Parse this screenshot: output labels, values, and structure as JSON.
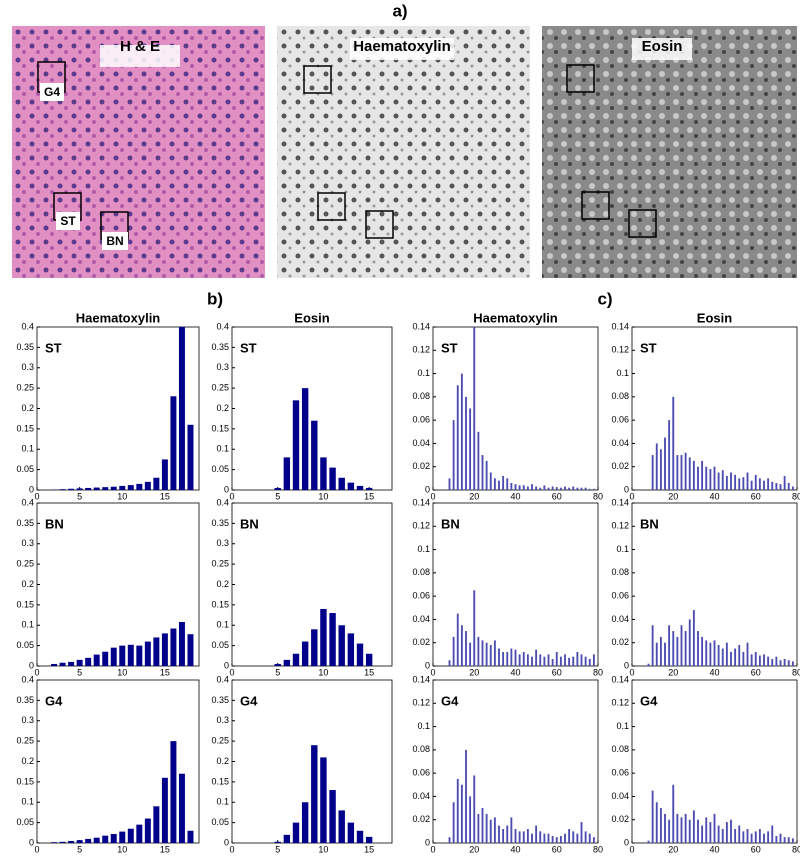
{
  "figure": {
    "label_a": "a)",
    "label_b": "b)",
    "label_c": "c)",
    "images": [
      {
        "title": "H & E",
        "boxes": [
          "G4",
          "ST",
          "BN"
        ]
      },
      {
        "title": "Haematoxylin"
      },
      {
        "title": "Eosin"
      }
    ]
  },
  "chart_data": [
    {
      "type": "bar",
      "title": "Haematoxylin",
      "annotation": "ST",
      "color": "#00008b",
      "x": [
        2,
        3,
        4,
        5,
        6,
        7,
        8,
        9,
        10,
        11,
        12,
        13,
        14,
        15,
        16,
        17,
        18
      ],
      "values": [
        0.001,
        0.002,
        0.003,
        0.004,
        0.005,
        0.006,
        0.007,
        0.008,
        0.01,
        0.012,
        0.015,
        0.02,
        0.03,
        0.075,
        0.23,
        0.4,
        0.16
      ],
      "xlim": [
        0,
        19
      ],
      "xticks": [
        0,
        5,
        10,
        15
      ],
      "ylim": [
        0,
        0.4
      ],
      "yticks": [
        0,
        0.05,
        0.1,
        0.15,
        0.2,
        0.25,
        0.3,
        0.35,
        0.4
      ]
    },
    {
      "type": "bar",
      "title": "Eosin",
      "annotation": "ST",
      "color": "#00008b",
      "x": [
        5,
        6,
        7,
        8,
        9,
        10,
        11,
        12,
        13,
        14,
        15
      ],
      "values": [
        0.005,
        0.08,
        0.22,
        0.25,
        0.17,
        0.08,
        0.055,
        0.03,
        0.018,
        0.01,
        0.005
      ],
      "xlim": [
        0,
        17.5
      ],
      "xticks": [
        0,
        5,
        10,
        15
      ],
      "ylim": [
        0,
        0.4
      ],
      "yticks": [
        0,
        0.05,
        0.1,
        0.15,
        0.2,
        0.25,
        0.3,
        0.35,
        0.4
      ]
    },
    {
      "type": "bar",
      "title": "Haematoxylin",
      "annotation": "ST",
      "color": "#4b4bb0",
      "x": [
        8,
        10,
        12,
        14,
        16,
        18,
        20,
        22,
        24,
        26,
        28,
        30,
        32,
        34,
        36,
        38,
        40,
        42,
        44,
        46,
        48,
        50,
        52,
        54,
        56,
        58,
        60,
        62,
        64,
        66,
        68,
        70,
        72,
        74,
        76,
        78
      ],
      "values": [
        0.01,
        0.06,
        0.09,
        0.1,
        0.08,
        0.07,
        0.14,
        0.05,
        0.03,
        0.025,
        0.015,
        0.01,
        0.008,
        0.012,
        0.01,
        0.006,
        0.005,
        0.004,
        0.004,
        0.003,
        0.005,
        0.003,
        0.002,
        0.004,
        0.002,
        0.003,
        0.002,
        0.002,
        0.003,
        0.002,
        0.003,
        0.002,
        0.002,
        0.002,
        0.001,
        0.001
      ],
      "xlim": [
        0,
        80
      ],
      "xticks": [
        0,
        20,
        40,
        60,
        80
      ],
      "ylim": [
        0,
        0.14
      ],
      "yticks": [
        0,
        0.02,
        0.04,
        0.06,
        0.08,
        0.1,
        0.12,
        0.14
      ]
    },
    {
      "type": "bar",
      "title": "Eosin",
      "annotation": "ST",
      "color": "#4b4bb0",
      "x": [
        8,
        10,
        12,
        14,
        16,
        18,
        20,
        22,
        24,
        26,
        28,
        30,
        32,
        34,
        36,
        38,
        40,
        42,
        44,
        46,
        48,
        50,
        52,
        54,
        56,
        58,
        60,
        62,
        64,
        66,
        68,
        70,
        72,
        74,
        76,
        78
      ],
      "values": [
        0,
        0.03,
        0.04,
        0.035,
        0.045,
        0.06,
        0.08,
        0.03,
        0.03,
        0.032,
        0.028,
        0.025,
        0.02,
        0.025,
        0.02,
        0.018,
        0.02,
        0.015,
        0.017,
        0.012,
        0.015,
        0.013,
        0.01,
        0.011,
        0.015,
        0.008,
        0.013,
        0.01,
        0.008,
        0.01,
        0.007,
        0.006,
        0.005,
        0.012,
        0.006,
        0.003
      ],
      "xlim": [
        0,
        80
      ],
      "xticks": [
        0,
        20,
        40,
        60,
        80
      ],
      "ylim": [
        0,
        0.14
      ],
      "yticks": [
        0,
        0.02,
        0.04,
        0.06,
        0.08,
        0.1,
        0.12,
        0.14
      ]
    },
    {
      "type": "bar",
      "annotation": "BN",
      "color": "#00008b",
      "x": [
        2,
        3,
        4,
        5,
        6,
        7,
        8,
        9,
        10,
        11,
        12,
        13,
        14,
        15,
        16,
        17,
        18
      ],
      "values": [
        0.005,
        0.008,
        0.01,
        0.015,
        0.02,
        0.028,
        0.035,
        0.045,
        0.05,
        0.052,
        0.05,
        0.06,
        0.07,
        0.08,
        0.092,
        0.108,
        0.078
      ],
      "xlim": [
        0,
        19
      ],
      "xticks": [
        0,
        5,
        10,
        15
      ],
      "ylim": [
        0,
        0.4
      ],
      "yticks": [
        0,
        0.05,
        0.1,
        0.15,
        0.2,
        0.25,
        0.3,
        0.35,
        0.4
      ]
    },
    {
      "type": "bar",
      "annotation": "BN",
      "color": "#00008b",
      "x": [
        5,
        6,
        7,
        8,
        9,
        10,
        11,
        12,
        13,
        14,
        15
      ],
      "values": [
        0.005,
        0.015,
        0.03,
        0.06,
        0.09,
        0.14,
        0.13,
        0.1,
        0.08,
        0.055,
        0.03
      ],
      "xlim": [
        0,
        17.5
      ],
      "xticks": [
        0,
        5,
        10,
        15
      ],
      "ylim": [
        0,
        0.4
      ],
      "yticks": [
        0,
        0.05,
        0.1,
        0.15,
        0.2,
        0.25,
        0.3,
        0.35,
        0.4
      ]
    },
    {
      "type": "bar",
      "annotation": "BN",
      "color": "#4b4bb0",
      "x": [
        8,
        10,
        12,
        14,
        16,
        18,
        20,
        22,
        24,
        26,
        28,
        30,
        32,
        34,
        36,
        38,
        40,
        42,
        44,
        46,
        48,
        50,
        52,
        54,
        56,
        58,
        60,
        62,
        64,
        66,
        68,
        70,
        72,
        74,
        76,
        78
      ],
      "values": [
        0.005,
        0.025,
        0.045,
        0.035,
        0.03,
        0.02,
        0.065,
        0.025,
        0.022,
        0.02,
        0.018,
        0.022,
        0.015,
        0.012,
        0.012,
        0.015,
        0.014,
        0.01,
        0.012,
        0.01,
        0.008,
        0.014,
        0.01,
        0.008,
        0.01,
        0.006,
        0.012,
        0.008,
        0.01,
        0.007,
        0.008,
        0.012,
        0.01,
        0.008,
        0.006,
        0.01
      ],
      "xlim": [
        0,
        80
      ],
      "xticks": [
        0,
        20,
        40,
        60,
        80
      ],
      "ylim": [
        0,
        0.14
      ],
      "yticks": [
        0,
        0.02,
        0.04,
        0.06,
        0.08,
        0.1,
        0.12,
        0.14
      ]
    },
    {
      "type": "bar",
      "annotation": "BN",
      "color": "#4b4bb0",
      "x": [
        8,
        10,
        12,
        14,
        16,
        18,
        20,
        22,
        24,
        26,
        28,
        30,
        32,
        34,
        36,
        38,
        40,
        42,
        44,
        46,
        48,
        50,
        52,
        54,
        56,
        58,
        60,
        62,
        64,
        66,
        68,
        70,
        72,
        74,
        76,
        78
      ],
      "values": [
        0.002,
        0.035,
        0.02,
        0.025,
        0.02,
        0.035,
        0.03,
        0.025,
        0.035,
        0.03,
        0.04,
        0.048,
        0.03,
        0.025,
        0.022,
        0.02,
        0.022,
        0.018,
        0.015,
        0.02,
        0.012,
        0.015,
        0.018,
        0.012,
        0.02,
        0.01,
        0.012,
        0.009,
        0.01,
        0.008,
        0.006,
        0.008,
        0.005,
        0.006,
        0.005,
        0.004
      ],
      "xlim": [
        0,
        80
      ],
      "xticks": [
        0,
        20,
        40,
        60,
        80
      ],
      "ylim": [
        0,
        0.14
      ],
      "yticks": [
        0,
        0.02,
        0.04,
        0.06,
        0.08,
        0.1,
        0.12,
        0.14
      ]
    },
    {
      "type": "bar",
      "annotation": "G4",
      "color": "#00008b",
      "x": [
        2,
        3,
        4,
        5,
        6,
        7,
        8,
        9,
        10,
        11,
        12,
        13,
        14,
        15,
        16,
        17,
        18
      ],
      "values": [
        0.002,
        0.003,
        0.005,
        0.007,
        0.01,
        0.013,
        0.018,
        0.022,
        0.028,
        0.035,
        0.045,
        0.06,
        0.09,
        0.16,
        0.25,
        0.17,
        0.03
      ],
      "xlim": [
        0,
        19
      ],
      "xticks": [
        0,
        5,
        10,
        15
      ],
      "ylim": [
        0,
        0.4
      ],
      "yticks": [
        0,
        0.05,
        0.1,
        0.15,
        0.2,
        0.25,
        0.3,
        0.35,
        0.4
      ]
    },
    {
      "type": "bar",
      "annotation": "G4",
      "color": "#00008b",
      "x": [
        5,
        6,
        7,
        8,
        9,
        10,
        11,
        12,
        13,
        14,
        15
      ],
      "values": [
        0.003,
        0.02,
        0.05,
        0.1,
        0.24,
        0.21,
        0.13,
        0.08,
        0.05,
        0.03,
        0.015
      ],
      "xlim": [
        0,
        17.5
      ],
      "xticks": [
        0,
        5,
        10,
        15
      ],
      "ylim": [
        0,
        0.4
      ],
      "yticks": [
        0,
        0.05,
        0.1,
        0.15,
        0.2,
        0.25,
        0.3,
        0.35,
        0.4
      ]
    },
    {
      "type": "bar",
      "annotation": "G4",
      "color": "#4b4bb0",
      "x": [
        8,
        10,
        12,
        14,
        16,
        18,
        20,
        22,
        24,
        26,
        28,
        30,
        32,
        34,
        36,
        38,
        40,
        42,
        44,
        46,
        48,
        50,
        52,
        54,
        56,
        58,
        60,
        62,
        64,
        66,
        68,
        70,
        72,
        74,
        76,
        78
      ],
      "values": [
        0.005,
        0.035,
        0.055,
        0.05,
        0.08,
        0.04,
        0.058,
        0.025,
        0.03,
        0.025,
        0.02,
        0.022,
        0.015,
        0.012,
        0.015,
        0.022,
        0.012,
        0.01,
        0.01,
        0.012,
        0.008,
        0.015,
        0.01,
        0.008,
        0.008,
        0.006,
        0.005,
        0.006,
        0.008,
        0.012,
        0.01,
        0.008,
        0.018,
        0.01,
        0.008,
        0.005
      ],
      "xlim": [
        0,
        80
      ],
      "xticks": [
        0,
        20,
        40,
        60,
        80
      ],
      "ylim": [
        0,
        0.14
      ],
      "yticks": [
        0,
        0.02,
        0.04,
        0.06,
        0.08,
        0.1,
        0.12,
        0.14
      ]
    },
    {
      "type": "bar",
      "annotation": "G4",
      "color": "#4b4bb0",
      "x": [
        8,
        10,
        12,
        14,
        16,
        18,
        20,
        22,
        24,
        26,
        28,
        30,
        32,
        34,
        36,
        38,
        40,
        42,
        44,
        46,
        48,
        50,
        52,
        54,
        56,
        58,
        60,
        62,
        64,
        66,
        68,
        70,
        72,
        74,
        76,
        78
      ],
      "values": [
        0.002,
        0.045,
        0.035,
        0.03,
        0.025,
        0.02,
        0.05,
        0.025,
        0.022,
        0.025,
        0.02,
        0.028,
        0.02,
        0.015,
        0.022,
        0.018,
        0.025,
        0.015,
        0.012,
        0.018,
        0.02,
        0.012,
        0.015,
        0.01,
        0.012,
        0.008,
        0.01,
        0.012,
        0.008,
        0.01,
        0.015,
        0.006,
        0.008,
        0.005,
        0.005,
        0.004
      ],
      "xlim": [
        0,
        80
      ],
      "xticks": [
        0,
        20,
        40,
        60,
        80
      ],
      "ylim": [
        0,
        0.14
      ],
      "yticks": [
        0,
        0.02,
        0.04,
        0.06,
        0.08,
        0.1,
        0.12,
        0.14
      ]
    }
  ]
}
